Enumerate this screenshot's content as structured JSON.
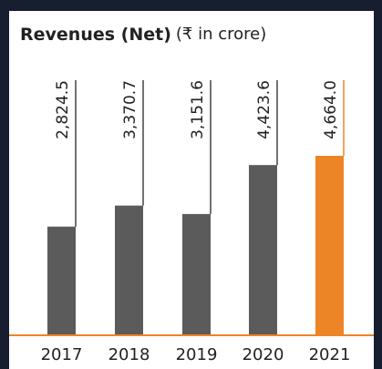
{
  "chart_data": {
    "type": "bar",
    "title": "Revenues (Net)",
    "subtitle": "(₹ in crore)",
    "categories": [
      "2017",
      "2018",
      "2019",
      "2020",
      "2021"
    ],
    "values": [
      2824.5,
      3370.7,
      3151.6,
      4423.6,
      4664.0
    ],
    "value_labels": [
      "2,824.5",
      "3,370.7",
      "3,151.6",
      "4,423.6",
      "4,664.0"
    ],
    "colors": [
      "#5b5b5b",
      "#5b5b5b",
      "#5b5b5b",
      "#5b5b5b",
      "#ec8526"
    ],
    "axis_color": "#ec8526"
  }
}
